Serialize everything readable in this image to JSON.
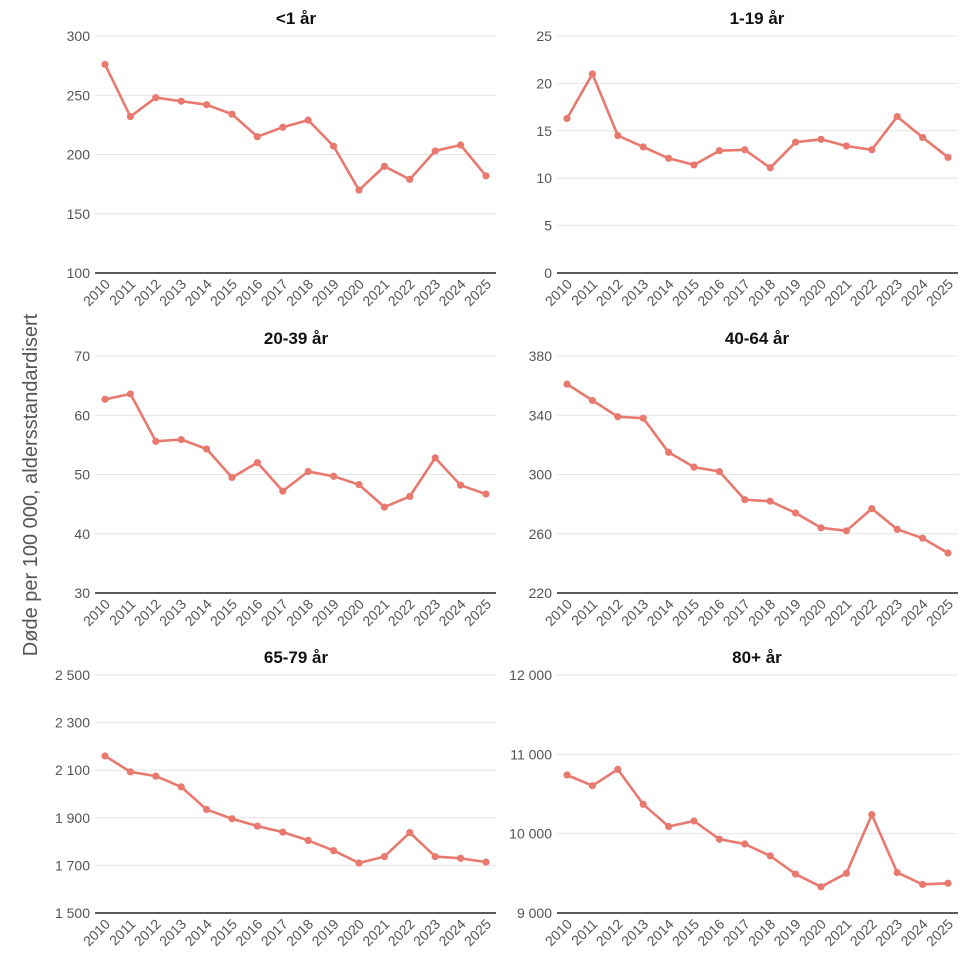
{
  "figure": {
    "ylabel": "Døde per 100 000, aldersstandardisert",
    "series_color": "#e8796f"
  },
  "chart_data": [
    {
      "type": "line",
      "title": "<1 år",
      "x": [
        "2010",
        "2011",
        "2012",
        "2013",
        "2014",
        "2015",
        "2016",
        "2017",
        "2018",
        "2019",
        "2020",
        "2021",
        "2022",
        "2023",
        "2024",
        "2025"
      ],
      "y": [
        276,
        232,
        248,
        245,
        242,
        234,
        215,
        223,
        229,
        207,
        170,
        190,
        179,
        203,
        208,
        182
      ],
      "ylim": [
        100,
        300
      ],
      "yticks": [
        100,
        150,
        200,
        250,
        300
      ],
      "ytick_labels": [
        "100",
        "150",
        "200",
        "250",
        "300"
      ],
      "grid": true
    },
    {
      "type": "line",
      "title": "1-19 år",
      "x": [
        "2010",
        "2011",
        "2012",
        "2013",
        "2014",
        "2015",
        "2016",
        "2017",
        "2018",
        "2019",
        "2020",
        "2021",
        "2022",
        "2023",
        "2024",
        "2025"
      ],
      "y": [
        16.3,
        21.0,
        14.5,
        13.3,
        12.1,
        11.4,
        12.9,
        13.0,
        11.1,
        13.8,
        14.1,
        13.4,
        13.0,
        16.5,
        14.3,
        12.2
      ],
      "ylim": [
        0,
        25
      ],
      "yticks": [
        0,
        5,
        10,
        15,
        20,
        25
      ],
      "ytick_labels": [
        "0",
        "5",
        "10",
        "15",
        "20",
        "25"
      ],
      "grid": true
    },
    {
      "type": "line",
      "title": "20-39 år",
      "x": [
        "2010",
        "2011",
        "2012",
        "2013",
        "2014",
        "2015",
        "2016",
        "2017",
        "2018",
        "2019",
        "2020",
        "2021",
        "2022",
        "2023",
        "2024",
        "2025"
      ],
      "y": [
        62.7,
        63.6,
        55.6,
        55.9,
        54.3,
        49.5,
        52.0,
        47.2,
        50.5,
        49.7,
        48.3,
        44.5,
        46.3,
        52.8,
        48.2,
        46.7
      ],
      "ylim": [
        30,
        70
      ],
      "yticks": [
        30,
        40,
        50,
        60,
        70
      ],
      "ytick_labels": [
        "30",
        "40",
        "50",
        "60",
        "70"
      ],
      "grid": true
    },
    {
      "type": "line",
      "title": "40-64 år",
      "x": [
        "2010",
        "2011",
        "2012",
        "2013",
        "2014",
        "2015",
        "2016",
        "2017",
        "2018",
        "2019",
        "2020",
        "2021",
        "2022",
        "2023",
        "2024",
        "2025"
      ],
      "y": [
        361,
        350,
        339,
        338,
        315,
        305,
        302,
        283,
        282,
        274,
        264,
        262,
        277,
        263,
        257,
        247
      ],
      "ylim": [
        220,
        380
      ],
      "yticks": [
        220,
        260,
        300,
        340,
        380
      ],
      "ytick_labels": [
        "220",
        "260",
        "300",
        "340",
        "380"
      ],
      "grid": true
    },
    {
      "type": "line",
      "title": "65-79 år",
      "x": [
        "2010",
        "2011",
        "2012",
        "2013",
        "2014",
        "2015",
        "2016",
        "2017",
        "2018",
        "2019",
        "2020",
        "2021",
        "2022",
        "2023",
        "2024",
        "2025"
      ],
      "y": [
        2160,
        2093,
        2075,
        2030,
        1935,
        1896,
        1865,
        1840,
        1805,
        1762,
        1710,
        1737,
        1838,
        1737,
        1730,
        1714
      ],
      "ylim": [
        1500,
        2500
      ],
      "yticks": [
        1500,
        1700,
        1900,
        2100,
        2300,
        2500
      ],
      "ytick_labels": [
        "1 500",
        "1 700",
        "1 900",
        "2 100",
        "2 300",
        "2 500"
      ],
      "grid": true
    },
    {
      "type": "line",
      "title": "80+ år",
      "x": [
        "2010",
        "2011",
        "2012",
        "2013",
        "2014",
        "2015",
        "2016",
        "2017",
        "2018",
        "2019",
        "2020",
        "2021",
        "2022",
        "2023",
        "2024",
        "2025"
      ],
      "y": [
        10740,
        10605,
        10810,
        10370,
        10090,
        10160,
        9930,
        9870,
        9720,
        9490,
        9330,
        9500,
        10240,
        9510,
        9360,
        9375
      ],
      "ylim": [
        9000,
        12000
      ],
      "yticks": [
        9000,
        10000,
        11000,
        12000
      ],
      "ytick_labels": [
        "9 000",
        "10 000",
        "11 000",
        "12 000"
      ],
      "grid": true
    }
  ]
}
